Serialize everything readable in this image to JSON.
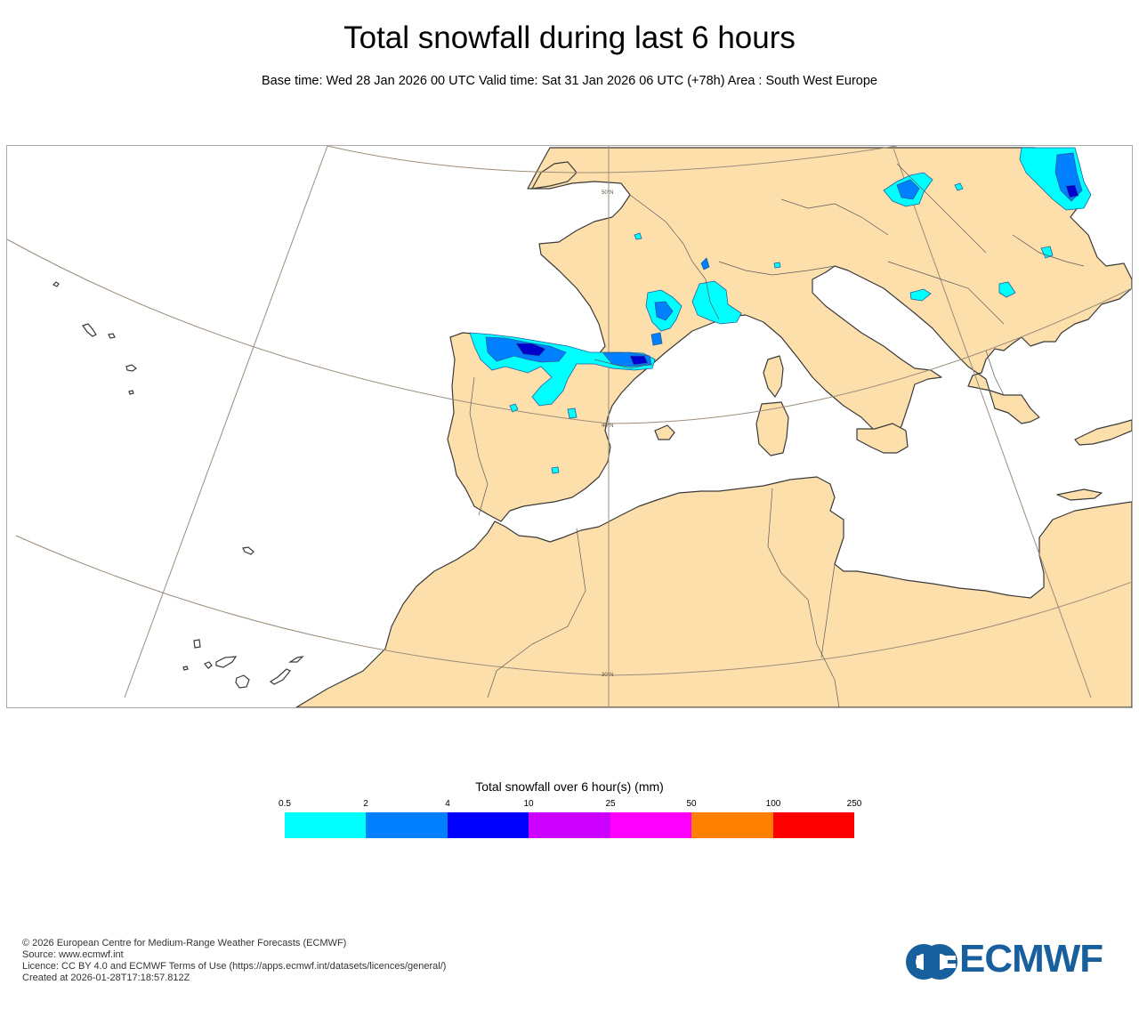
{
  "header": {
    "title": "Total snowfall during last 6 hours",
    "subtitle": "Base time: Wed 28 Jan 2026 00 UTC Valid time: Sat 31 Jan 2026 06 UTC (+78h) Area : South West Europe"
  },
  "map": {
    "area": "South West Europe",
    "latitude_labels": [
      "50°N",
      "40°N",
      "30°N"
    ],
    "colors": {
      "land": "#fddfac",
      "sea": "#ffffff",
      "coastline": "#3a3a3a",
      "graticule": "#9b8c7a"
    }
  },
  "legend": {
    "title": "Total snowfall over 6 hour(s) (mm)",
    "ticks": [
      "0.5",
      "2",
      "4",
      "10",
      "25",
      "50",
      "100",
      "250"
    ],
    "colors": [
      "#00ffff",
      "#0080ff",
      "#0000ff",
      "#cc00ff",
      "#ff00ff",
      "#ff8000",
      "#ff0000"
    ]
  },
  "footer": {
    "lines": [
      "© 2026 European Centre for Medium-Range Weather Forecasts (ECMWF)",
      "Source: www.ecmwf.int",
      "Licence: CC BY 4.0 and ECMWF Terms of Use (https://apps.ecmwf.int/datasets/licences/general/)",
      "Created at 2026-01-28T17:18:57.812Z"
    ]
  },
  "logo": {
    "text": "ECMWF",
    "color": "#185f9e"
  }
}
